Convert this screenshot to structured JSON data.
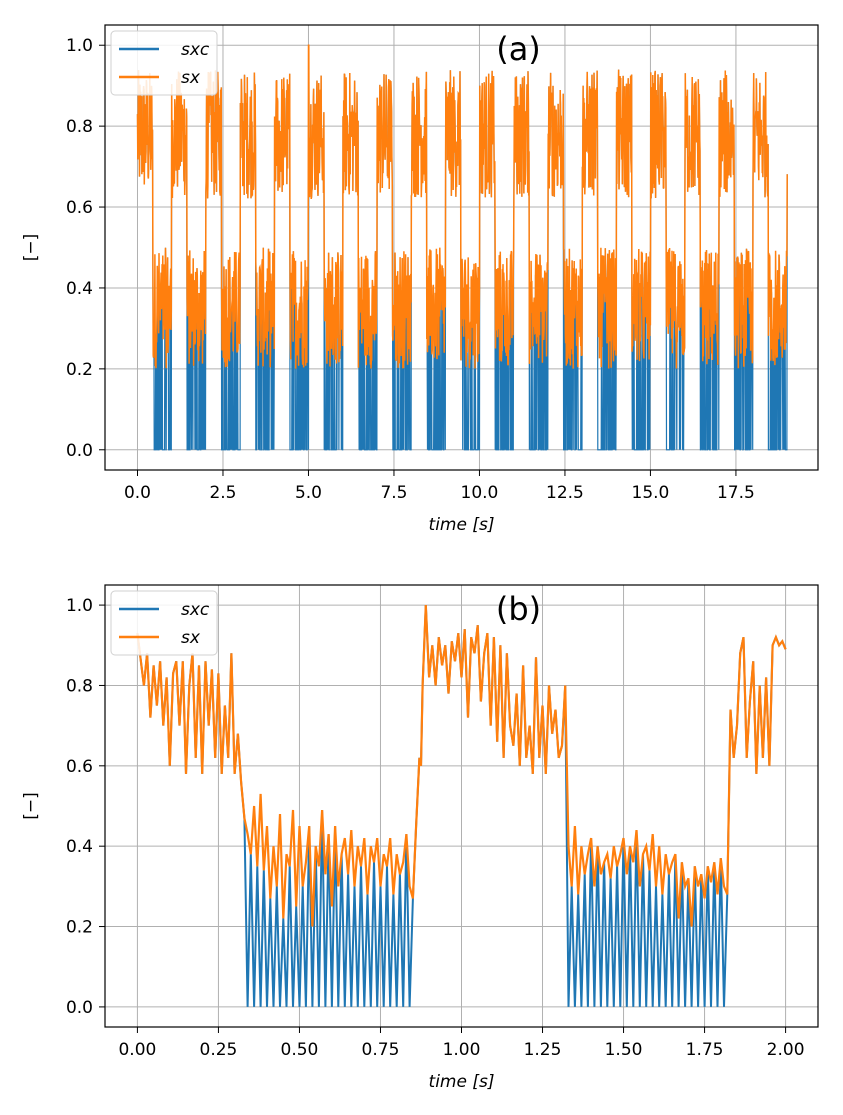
{
  "chart_data": [
    {
      "type": "line",
      "title": "(a)",
      "xlabel": "time [s]",
      "ylabel": "[−]",
      "xlim": [
        -0.95,
        19.9
      ],
      "ylim": [
        -0.05,
        1.05
      ],
      "xticks": [
        0.0,
        2.5,
        5.0,
        7.5,
        10.0,
        12.5,
        15.0,
        17.5
      ],
      "xtick_labels": [
        "0.0",
        "2.5",
        "5.0",
        "7.5",
        "10.0",
        "12.5",
        "15.0",
        "17.5"
      ],
      "yticks": [
        0.0,
        0.2,
        0.4,
        0.6,
        0.8,
        1.0
      ],
      "ytick_labels": [
        "0.0",
        "0.2",
        "0.4",
        "0.6",
        "0.8",
        "1.0"
      ],
      "grid": true,
      "legend_position": "top-left",
      "period_s": 1.0,
      "duration_s": 19.0,
      "description_of_pattern": "periodic gait-like signal; orange envelope 0.6-1.0 in swing, 0.2-0.5 in stance; blue sxc drops to 0 in stance",
      "series": [
        {
          "name": "sxc",
          "color": "#1f77b4"
        },
        {
          "name": "sx",
          "color": "#ff7f0e"
        }
      ]
    },
    {
      "type": "line",
      "title": "(b)",
      "xlabel": "time [s]",
      "ylabel": "[−]",
      "xlim": [
        -0.1,
        2.1
      ],
      "ylim": [
        -0.05,
        1.05
      ],
      "xticks": [
        0.0,
        0.25,
        0.5,
        0.75,
        1.0,
        1.25,
        1.5,
        1.75,
        2.0
      ],
      "xtick_labels": [
        "0.00",
        "0.25",
        "0.50",
        "0.75",
        "1.00",
        "1.25",
        "1.50",
        "1.75",
        "2.00"
      ],
      "yticks": [
        0.0,
        0.2,
        0.4,
        0.6,
        0.8,
        1.0
      ],
      "ytick_labels": [
        "0.0",
        "0.2",
        "0.4",
        "0.6",
        "0.8",
        "1.0"
      ],
      "grid": true,
      "legend_position": "top-left",
      "series": [
        {
          "name": "sxc",
          "color": "#1f77b4"
        },
        {
          "name": "sx",
          "color": "#ff7f0e"
        }
      ],
      "sx_points": [
        [
          0.0,
          0.93
        ],
        [
          0.02,
          0.8
        ],
        [
          0.03,
          0.88
        ],
        [
          0.04,
          0.72
        ],
        [
          0.05,
          0.85
        ],
        [
          0.06,
          0.75
        ],
        [
          0.07,
          0.86
        ],
        [
          0.08,
          0.7
        ],
        [
          0.09,
          0.82
        ],
        [
          0.1,
          0.6
        ],
        [
          0.11,
          0.83
        ],
        [
          0.12,
          0.86
        ],
        [
          0.13,
          0.7
        ],
        [
          0.14,
          0.86
        ],
        [
          0.15,
          0.58
        ],
        [
          0.16,
          0.8
        ],
        [
          0.17,
          0.88
        ],
        [
          0.18,
          0.62
        ],
        [
          0.19,
          0.85
        ],
        [
          0.2,
          0.58
        ],
        [
          0.21,
          0.86
        ],
        [
          0.22,
          0.7
        ],
        [
          0.23,
          0.84
        ],
        [
          0.24,
          0.62
        ],
        [
          0.25,
          0.83
        ],
        [
          0.26,
          0.58
        ],
        [
          0.27,
          0.75
        ],
        [
          0.28,
          0.62
        ],
        [
          0.29,
          0.88
        ],
        [
          0.3,
          0.58
        ],
        [
          0.31,
          0.68
        ],
        [
          0.32,
          0.56
        ],
        [
          0.33,
          0.47
        ],
        [
          0.34,
          0.43
        ],
        [
          0.35,
          0.38
        ],
        [
          0.36,
          0.5
        ],
        [
          0.37,
          0.35
        ],
        [
          0.38,
          0.53
        ],
        [
          0.39,
          0.34
        ],
        [
          0.4,
          0.45
        ],
        [
          0.41,
          0.27
        ],
        [
          0.42,
          0.4
        ],
        [
          0.43,
          0.3
        ],
        [
          0.44,
          0.48
        ],
        [
          0.45,
          0.22
        ],
        [
          0.46,
          0.38
        ],
        [
          0.47,
          0.35
        ],
        [
          0.48,
          0.49
        ],
        [
          0.49,
          0.25
        ],
        [
          0.5,
          0.45
        ],
        [
          0.51,
          0.3
        ],
        [
          0.52,
          0.36
        ],
        [
          0.53,
          0.45
        ],
        [
          0.54,
          0.2
        ],
        [
          0.55,
          0.4
        ],
        [
          0.56,
          0.35
        ],
        [
          0.57,
          0.49
        ],
        [
          0.58,
          0.33
        ],
        [
          0.59,
          0.43
        ],
        [
          0.6,
          0.25
        ],
        [
          0.61,
          0.45
        ],
        [
          0.62,
          0.3
        ],
        [
          0.63,
          0.38
        ],
        [
          0.64,
          0.42
        ],
        [
          0.65,
          0.33
        ],
        [
          0.66,
          0.44
        ],
        [
          0.67,
          0.3
        ],
        [
          0.68,
          0.4
        ],
        [
          0.69,
          0.35
        ],
        [
          0.7,
          0.42
        ],
        [
          0.71,
          0.28
        ],
        [
          0.72,
          0.4
        ],
        [
          0.73,
          0.36
        ],
        [
          0.74,
          0.42
        ],
        [
          0.75,
          0.3
        ],
        [
          0.76,
          0.38
        ],
        [
          0.77,
          0.35
        ],
        [
          0.78,
          0.42
        ],
        [
          0.79,
          0.28
        ],
        [
          0.8,
          0.38
        ],
        [
          0.81,
          0.33
        ],
        [
          0.82,
          0.36
        ],
        [
          0.83,
          0.43
        ],
        [
          0.84,
          0.3
        ],
        [
          0.85,
          0.27
        ],
        [
          0.86,
          0.45
        ],
        [
          0.87,
          0.62
        ],
        [
          0.875,
          0.6
        ],
        [
          0.88,
          0.8
        ],
        [
          0.89,
          1.0
        ],
        [
          0.9,
          0.82
        ],
        [
          0.91,
          0.9
        ],
        [
          0.92,
          0.8
        ],
        [
          0.93,
          0.92
        ],
        [
          0.94,
          0.85
        ],
        [
          0.95,
          0.9
        ],
        [
          0.96,
          0.78
        ],
        [
          0.97,
          0.91
        ],
        [
          0.98,
          0.86
        ],
        [
          0.99,
          0.93
        ],
        [
          1.0,
          0.82
        ],
        [
          1.01,
          0.94
        ],
        [
          1.02,
          0.72
        ],
        [
          1.03,
          0.92
        ],
        [
          1.04,
          0.88
        ],
        [
          1.05,
          0.95
        ],
        [
          1.06,
          0.76
        ],
        [
          1.07,
          0.88
        ],
        [
          1.08,
          0.93
        ],
        [
          1.09,
          0.7
        ],
        [
          1.1,
          0.92
        ],
        [
          1.11,
          0.66
        ],
        [
          1.12,
          0.9
        ],
        [
          1.13,
          0.62
        ],
        [
          1.14,
          0.88
        ],
        [
          1.15,
          0.7
        ],
        [
          1.16,
          0.65
        ],
        [
          1.17,
          0.78
        ],
        [
          1.18,
          0.6
        ],
        [
          1.19,
          0.85
        ],
        [
          1.2,
          0.62
        ],
        [
          1.21,
          0.7
        ],
        [
          1.22,
          0.58
        ],
        [
          1.23,
          0.87
        ],
        [
          1.24,
          0.62
        ],
        [
          1.25,
          0.75
        ],
        [
          1.26,
          0.58
        ],
        [
          1.27,
          0.8
        ],
        [
          1.28,
          0.68
        ],
        [
          1.29,
          0.74
        ],
        [
          1.3,
          0.62
        ],
        [
          1.31,
          0.65
        ],
        [
          1.32,
          0.8
        ],
        [
          1.33,
          0.4
        ],
        [
          1.34,
          0.3
        ],
        [
          1.35,
          0.45
        ],
        [
          1.36,
          0.28
        ],
        [
          1.37,
          0.4
        ],
        [
          1.38,
          0.33
        ],
        [
          1.39,
          0.38
        ],
        [
          1.4,
          0.42
        ],
        [
          1.41,
          0.3
        ],
        [
          1.42,
          0.4
        ],
        [
          1.43,
          0.33
        ],
        [
          1.44,
          0.36
        ],
        [
          1.45,
          0.38
        ],
        [
          1.46,
          0.32
        ],
        [
          1.47,
          0.4
        ],
        [
          1.48,
          0.35
        ],
        [
          1.49,
          0.38
        ],
        [
          1.5,
          0.42
        ],
        [
          1.51,
          0.33
        ],
        [
          1.52,
          0.4
        ],
        [
          1.53,
          0.36
        ],
        [
          1.54,
          0.44
        ],
        [
          1.55,
          0.3
        ],
        [
          1.56,
          0.38
        ],
        [
          1.57,
          0.4
        ],
        [
          1.58,
          0.34
        ],
        [
          1.59,
          0.43
        ],
        [
          1.6,
          0.3
        ],
        [
          1.61,
          0.4
        ],
        [
          1.62,
          0.28
        ],
        [
          1.63,
          0.38
        ],
        [
          1.64,
          0.33
        ],
        [
          1.65,
          0.36
        ],
        [
          1.66,
          0.38
        ],
        [
          1.67,
          0.22
        ],
        [
          1.68,
          0.36
        ],
        [
          1.69,
          0.3
        ],
        [
          1.7,
          0.32
        ],
        [
          1.71,
          0.2
        ],
        [
          1.72,
          0.35
        ],
        [
          1.73,
          0.3
        ],
        [
          1.74,
          0.33
        ],
        [
          1.75,
          0.27
        ],
        [
          1.76,
          0.35
        ],
        [
          1.77,
          0.31
        ],
        [
          1.78,
          0.36
        ],
        [
          1.79,
          0.28
        ],
        [
          1.8,
          0.37
        ],
        [
          1.81,
          0.3
        ],
        [
          1.82,
          0.28
        ],
        [
          1.83,
          0.74
        ],
        [
          1.84,
          0.62
        ],
        [
          1.85,
          0.7
        ],
        [
          1.86,
          0.88
        ],
        [
          1.87,
          0.92
        ],
        [
          1.88,
          0.62
        ],
        [
          1.89,
          0.76
        ],
        [
          1.9,
          0.86
        ],
        [
          1.91,
          0.58
        ],
        [
          1.92,
          0.8
        ],
        [
          1.93,
          0.62
        ],
        [
          1.94,
          0.82
        ],
        [
          1.95,
          0.6
        ],
        [
          1.96,
          0.9
        ],
        [
          1.97,
          0.92
        ],
        [
          1.98,
          0.9
        ],
        [
          1.99,
          0.91
        ],
        [
          2.0,
          0.89
        ]
      ],
      "stance_intervals": [
        [
          0.33,
          0.85
        ],
        [
          1.33,
          1.82
        ]
      ]
    }
  ]
}
